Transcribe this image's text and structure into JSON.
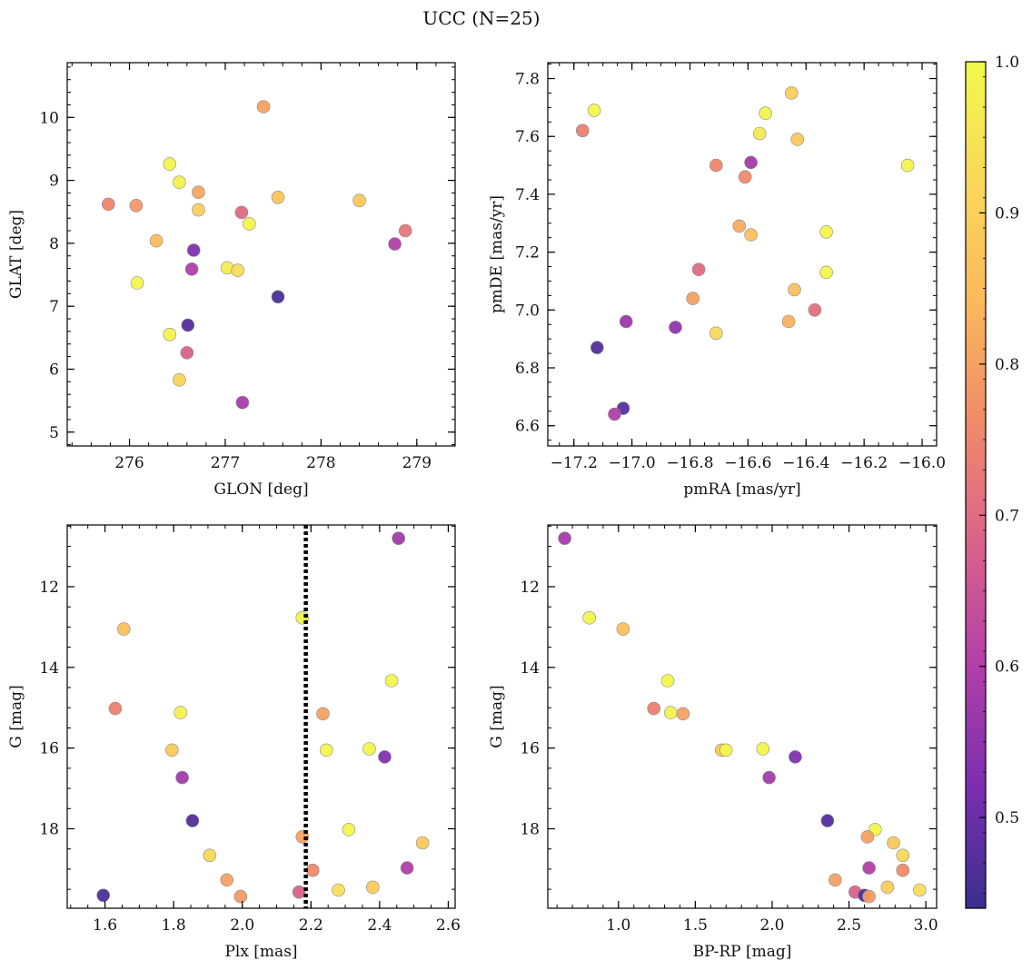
{
  "figure_title": "UCC (N=25)",
  "colorbar": {
    "min": 0.44,
    "max": 1.0,
    "ticks": [
      "0.5",
      "0.6",
      "0.7",
      "0.8",
      "0.9",
      "1.0"
    ],
    "tick_values": [
      0.5,
      0.6,
      0.7,
      0.8,
      0.9,
      1.0
    ],
    "colormap": "plasma"
  },
  "colormap_stops": [
    "#3b2f8f",
    "#7a2fb0",
    "#b13fa8",
    "#d8628a",
    "#f08a6a",
    "#fbb85c",
    "#f9d85a",
    "#f1f94a"
  ],
  "chart_data": [
    {
      "type": "scatter",
      "name": "glon-glat",
      "xlabel": "GLON [deg]",
      "ylabel": "GLAT [deg]",
      "xlim": [
        275.35,
        279.4
      ],
      "ylim": [
        4.78,
        10.87
      ],
      "xticks": [
        276,
        277,
        278,
        279
      ],
      "xtick_labels": [
        "276",
        "277",
        "278",
        "279"
      ],
      "xminor": 0.2,
      "yticks": [
        5,
        6,
        7,
        8,
        9,
        10
      ],
      "ytick_labels": [
        "5",
        "6",
        "7",
        "8",
        "9",
        "10"
      ],
      "yminor": 0.2,
      "points": [
        {
          "x": 277.4,
          "y": 10.17,
          "c": 0.8
        },
        {
          "x": 276.42,
          "y": 9.26,
          "c": 0.99
        },
        {
          "x": 276.52,
          "y": 8.97,
          "c": 0.98
        },
        {
          "x": 276.72,
          "y": 8.81,
          "c": 0.81
        },
        {
          "x": 277.55,
          "y": 8.73,
          "c": 0.87
        },
        {
          "x": 278.4,
          "y": 8.68,
          "c": 0.88
        },
        {
          "x": 275.78,
          "y": 8.62,
          "c": 0.75
        },
        {
          "x": 276.07,
          "y": 8.6,
          "c": 0.78
        },
        {
          "x": 276.72,
          "y": 8.53,
          "c": 0.9
        },
        {
          "x": 277.17,
          "y": 8.49,
          "c": 0.7
        },
        {
          "x": 277.25,
          "y": 8.31,
          "c": 0.99
        },
        {
          "x": 278.88,
          "y": 8.2,
          "c": 0.72
        },
        {
          "x": 276.28,
          "y": 8.04,
          "c": 0.85
        },
        {
          "x": 278.77,
          "y": 7.99,
          "c": 0.6
        },
        {
          "x": 276.67,
          "y": 7.89,
          "c": 0.53
        },
        {
          "x": 277.02,
          "y": 7.61,
          "c": 0.97
        },
        {
          "x": 276.65,
          "y": 7.59,
          "c": 0.6
        },
        {
          "x": 277.13,
          "y": 7.57,
          "c": 0.93
        },
        {
          "x": 276.08,
          "y": 7.37,
          "c": 0.99
        },
        {
          "x": 277.55,
          "y": 7.15,
          "c": 0.46
        },
        {
          "x": 276.61,
          "y": 6.7,
          "c": 0.47
        },
        {
          "x": 276.42,
          "y": 6.55,
          "c": 0.99
        },
        {
          "x": 276.6,
          "y": 6.26,
          "c": 0.68
        },
        {
          "x": 276.52,
          "y": 5.83,
          "c": 0.91
        },
        {
          "x": 277.18,
          "y": 5.47,
          "c": 0.59
        }
      ]
    },
    {
      "type": "scatter",
      "name": "pmra-pmde",
      "xlabel": "pmRA [mas/yr]",
      "ylabel": "pmDE [mas/yr]",
      "xlim": [
        -17.29,
        -15.95
      ],
      "ylim": [
        6.53,
        7.855
      ],
      "xticks": [
        -17.2,
        -17.0,
        -16.8,
        -16.6,
        -16.4,
        -16.2,
        -16.0
      ],
      "xtick_labels": [
        "−17.2",
        "−17.0",
        "−16.8",
        "−16.6",
        "−16.4",
        "−16.2",
        "−16.0"
      ],
      "xminor": 0.05,
      "yticks": [
        6.6,
        6.8,
        7.0,
        7.2,
        7.4,
        7.6,
        7.8
      ],
      "ytick_labels": [
        "6.6",
        "6.8",
        "7.0",
        "7.2",
        "7.4",
        "7.6",
        "7.8"
      ],
      "yminor": 0.05,
      "points": [
        {
          "x": -16.45,
          "y": 7.75,
          "c": 0.9
        },
        {
          "x": -17.13,
          "y": 7.69,
          "c": 0.99
        },
        {
          "x": -16.54,
          "y": 7.68,
          "c": 0.99
        },
        {
          "x": -17.17,
          "y": 7.62,
          "c": 0.74
        },
        {
          "x": -16.56,
          "y": 7.61,
          "c": 0.96
        },
        {
          "x": -16.43,
          "y": 7.59,
          "c": 0.88
        },
        {
          "x": -16.59,
          "y": 7.51,
          "c": 0.58
        },
        {
          "x": -16.71,
          "y": 7.5,
          "c": 0.75
        },
        {
          "x": -16.05,
          "y": 7.5,
          "c": 0.99
        },
        {
          "x": -16.61,
          "y": 7.46,
          "c": 0.76
        },
        {
          "x": -16.63,
          "y": 7.29,
          "c": 0.82
        },
        {
          "x": -16.33,
          "y": 7.27,
          "c": 0.99
        },
        {
          "x": -16.59,
          "y": 7.26,
          "c": 0.86
        },
        {
          "x": -16.77,
          "y": 7.14,
          "c": 0.7
        },
        {
          "x": -16.33,
          "y": 7.13,
          "c": 0.99
        },
        {
          "x": -16.44,
          "y": 7.07,
          "c": 0.86
        },
        {
          "x": -16.79,
          "y": 7.04,
          "c": 0.8
        },
        {
          "x": -16.37,
          "y": 7.0,
          "c": 0.71
        },
        {
          "x": -17.02,
          "y": 6.96,
          "c": 0.57
        },
        {
          "x": -16.46,
          "y": 6.96,
          "c": 0.83
        },
        {
          "x": -16.85,
          "y": 6.94,
          "c": 0.55
        },
        {
          "x": -16.71,
          "y": 6.92,
          "c": 0.92
        },
        {
          "x": -17.12,
          "y": 6.87,
          "c": 0.47
        },
        {
          "x": -17.03,
          "y": 6.66,
          "c": 0.48
        },
        {
          "x": -17.06,
          "y": 6.64,
          "c": 0.6
        }
      ]
    },
    {
      "type": "scatter",
      "name": "plx-g",
      "xlabel": "Plx [mas]",
      "ylabel": "G [mag]",
      "xlim": [
        1.49,
        2.62
      ],
      "ylim": [
        19.97,
        10.47
      ],
      "xticks": [
        1.6,
        1.8,
        2.0,
        2.2,
        2.4,
        2.6
      ],
      "xtick_labels": [
        "1.6",
        "1.8",
        "2.0",
        "2.2",
        "2.4",
        "2.6"
      ],
      "xminor": 0.05,
      "yticks": [
        12,
        14,
        16,
        18
      ],
      "ytick_labels": [
        "12",
        "14",
        "16",
        "18"
      ],
      "yminor": 0.5,
      "vline": {
        "x": 2.185,
        "style": "dotted"
      },
      "points": [
        {
          "x": 2.455,
          "y": 10.8,
          "c": 0.58
        },
        {
          "x": 2.175,
          "y": 12.77,
          "c": 0.99
        },
        {
          "x": 1.655,
          "y": 13.05,
          "c": 0.86
        },
        {
          "x": 2.435,
          "y": 14.33,
          "c": 0.99
        },
        {
          "x": 1.63,
          "y": 15.02,
          "c": 0.74
        },
        {
          "x": 1.82,
          "y": 15.12,
          "c": 0.98
        },
        {
          "x": 2.235,
          "y": 15.15,
          "c": 0.8
        },
        {
          "x": 1.795,
          "y": 16.05,
          "c": 0.88
        },
        {
          "x": 2.245,
          "y": 16.05,
          "c": 0.99
        },
        {
          "x": 2.37,
          "y": 16.02,
          "c": 0.99
        },
        {
          "x": 2.415,
          "y": 16.22,
          "c": 0.53
        },
        {
          "x": 1.825,
          "y": 16.73,
          "c": 0.58
        },
        {
          "x": 1.855,
          "y": 17.8,
          "c": 0.47
        },
        {
          "x": 2.31,
          "y": 18.02,
          "c": 0.99
        },
        {
          "x": 2.175,
          "y": 18.2,
          "c": 0.8
        },
        {
          "x": 2.525,
          "y": 18.35,
          "c": 0.88
        },
        {
          "x": 1.905,
          "y": 18.66,
          "c": 0.92
        },
        {
          "x": 2.48,
          "y": 18.97,
          "c": 0.6
        },
        {
          "x": 2.205,
          "y": 19.03,
          "c": 0.76
        },
        {
          "x": 1.955,
          "y": 19.27,
          "c": 0.8
        },
        {
          "x": 2.38,
          "y": 19.45,
          "c": 0.89
        },
        {
          "x": 2.28,
          "y": 19.52,
          "c": 0.93
        },
        {
          "x": 2.165,
          "y": 19.57,
          "c": 0.68
        },
        {
          "x": 1.595,
          "y": 19.65,
          "c": 0.46
        },
        {
          "x": 1.995,
          "y": 19.68,
          "c": 0.79
        }
      ]
    },
    {
      "type": "scatter",
      "name": "bprp-g",
      "xlabel": "BP-RP [mag]",
      "ylabel": "G [mag]",
      "xlim": [
        0.54,
        3.07
      ],
      "ylim": [
        19.97,
        10.47
      ],
      "xticks": [
        1.0,
        1.5,
        2.0,
        2.5,
        3.0
      ],
      "xtick_labels": [
        "1.0",
        "1.5",
        "2.0",
        "2.5",
        "3.0"
      ],
      "xminor": 0.1,
      "yticks": [
        12,
        14,
        16,
        18
      ],
      "ytick_labels": [
        "12",
        "14",
        "16",
        "18"
      ],
      "yminor": 0.5,
      "points": [
        {
          "x": 0.65,
          "y": 10.8,
          "c": 0.58
        },
        {
          "x": 0.81,
          "y": 12.77,
          "c": 0.99
        },
        {
          "x": 1.03,
          "y": 13.05,
          "c": 0.86
        },
        {
          "x": 1.32,
          "y": 14.33,
          "c": 0.99
        },
        {
          "x": 1.23,
          "y": 15.02,
          "c": 0.74
        },
        {
          "x": 1.34,
          "y": 15.12,
          "c": 0.98
        },
        {
          "x": 1.42,
          "y": 15.15,
          "c": 0.8
        },
        {
          "x": 1.67,
          "y": 16.05,
          "c": 0.88
        },
        {
          "x": 1.7,
          "y": 16.05,
          "c": 0.99
        },
        {
          "x": 1.94,
          "y": 16.02,
          "c": 0.99
        },
        {
          "x": 2.15,
          "y": 16.22,
          "c": 0.53
        },
        {
          "x": 1.98,
          "y": 16.73,
          "c": 0.58
        },
        {
          "x": 2.36,
          "y": 17.8,
          "c": 0.47
        },
        {
          "x": 2.67,
          "y": 18.02,
          "c": 0.99
        },
        {
          "x": 2.62,
          "y": 18.2,
          "c": 0.8
        },
        {
          "x": 2.79,
          "y": 18.35,
          "c": 0.88
        },
        {
          "x": 2.85,
          "y": 18.66,
          "c": 0.92
        },
        {
          "x": 2.63,
          "y": 18.97,
          "c": 0.6
        },
        {
          "x": 2.85,
          "y": 19.03,
          "c": 0.76
        },
        {
          "x": 2.41,
          "y": 19.27,
          "c": 0.8
        },
        {
          "x": 2.75,
          "y": 19.45,
          "c": 0.89
        },
        {
          "x": 2.96,
          "y": 19.52,
          "c": 0.93
        },
        {
          "x": 2.54,
          "y": 19.57,
          "c": 0.68
        },
        {
          "x": 2.6,
          "y": 19.65,
          "c": 0.46
        },
        {
          "x": 2.63,
          "y": 19.68,
          "c": 0.79
        }
      ]
    }
  ]
}
